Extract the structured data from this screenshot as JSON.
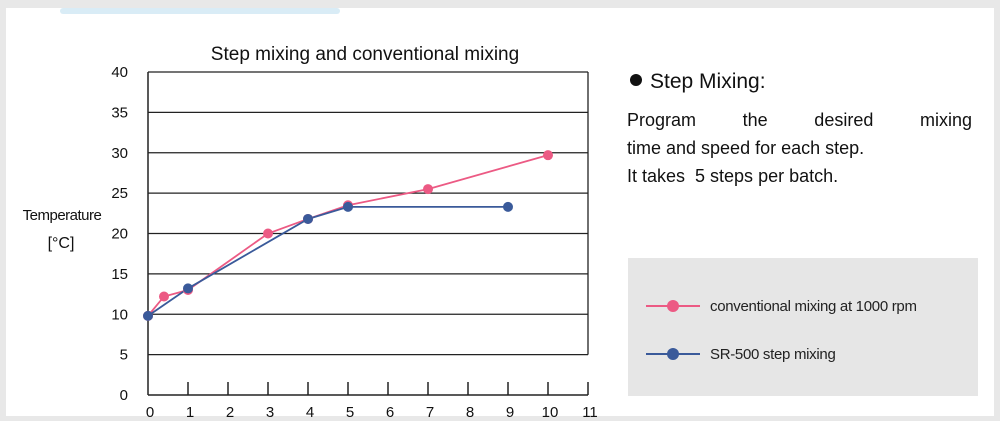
{
  "chart_data": {
    "type": "line",
    "title": "Step mixing and conventional mixing",
    "ylabel_line1": "Temperature",
    "ylabel_line2": "[°C]",
    "xlabel": "",
    "xlim": [
      0,
      11
    ],
    "ylim": [
      0,
      40
    ],
    "x_ticks": [
      0,
      1,
      2,
      3,
      4,
      5,
      6,
      7,
      8,
      9,
      10,
      11
    ],
    "y_ticks": [
      0,
      5,
      10,
      15,
      20,
      25,
      30,
      35,
      40
    ],
    "grid": "horizontal",
    "legend_position": "right",
    "series": [
      {
        "name": "conventional mixing at 1000 rpm",
        "color": "#ec5a84",
        "points": [
          [
            0,
            9.8
          ],
          [
            0.4,
            12.2
          ],
          [
            1,
            13
          ],
          [
            3,
            20
          ],
          [
            4,
            21.8
          ],
          [
            5,
            23.5
          ],
          [
            7,
            25.5
          ],
          [
            10,
            29.7
          ]
        ]
      },
      {
        "name": "SR-500 step mixing",
        "color": "#3a5a9a",
        "points": [
          [
            0,
            9.8
          ],
          [
            1,
            13.2
          ],
          [
            4,
            21.8
          ],
          [
            5,
            23.3
          ],
          [
            9,
            23.3
          ]
        ]
      }
    ]
  },
  "info": {
    "heading": "Step Mixing:",
    "lines": [
      "Program the desired mixing",
      "time and speed for each step.",
      "It takes  5 steps per batch."
    ]
  },
  "colors": {
    "panel": "#ffffff",
    "legend_bg": "#e6e6e6",
    "grid": "#222222"
  }
}
